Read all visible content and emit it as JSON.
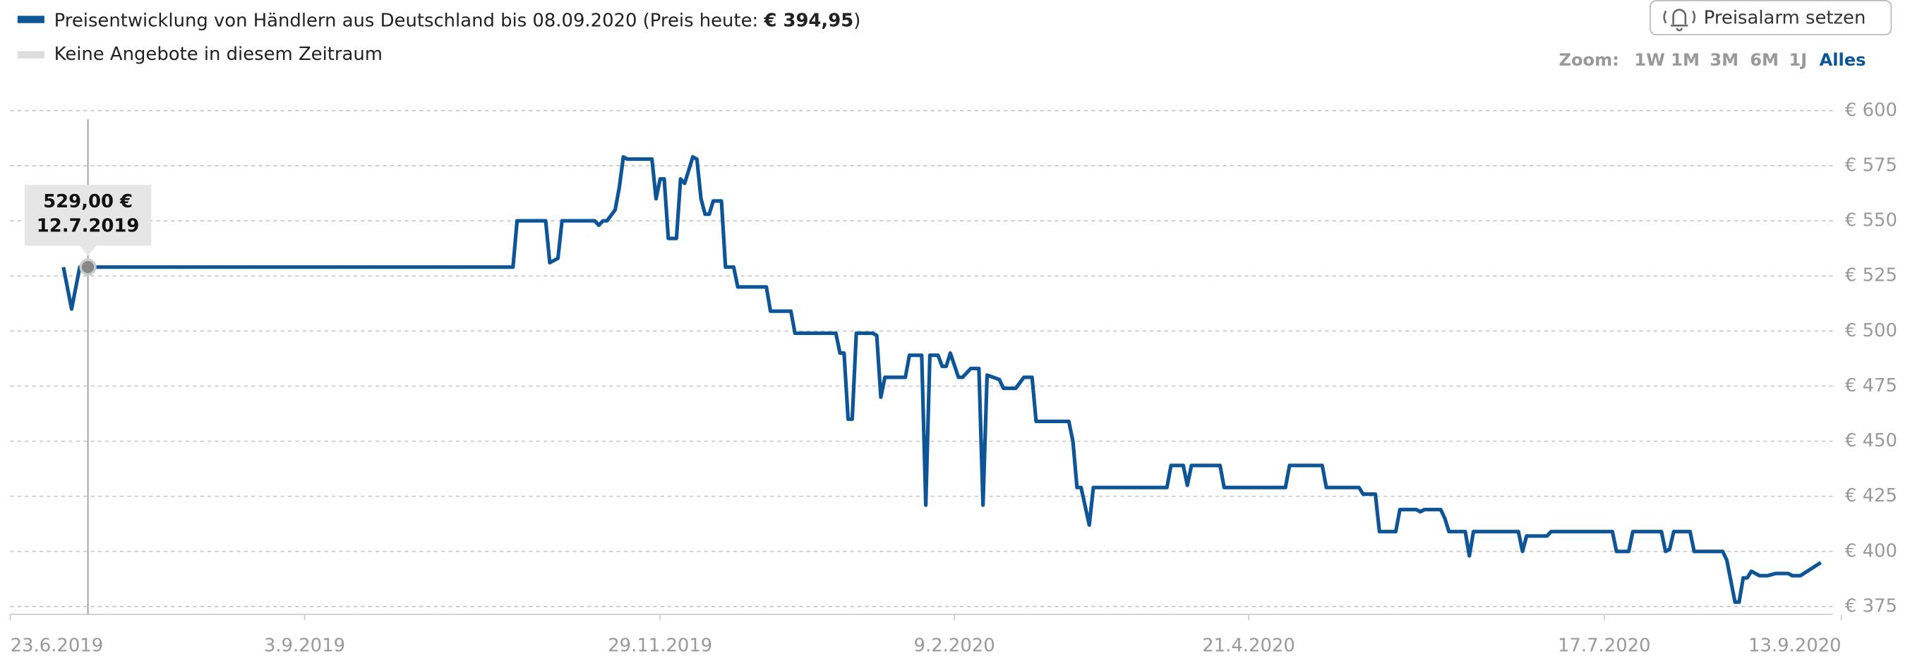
{
  "chart_data": {
    "type": "line",
    "series": [
      {
        "name": "Preisentwicklung von Händlern aus Deutschland bis 08.09.2020 (Preis heute:",
        "color": "#0d5596",
        "values": [
          529,
          510,
          529,
          529,
          529,
          550,
          550,
          531,
          533,
          550,
          550,
          548,
          550,
          550,
          555,
          565,
          579,
          578,
          578,
          560,
          569,
          569,
          542,
          542,
          569,
          567,
          579,
          578,
          560,
          553,
          553,
          559,
          559,
          529,
          529,
          520,
          520,
          509,
          509,
          499,
          499,
          490,
          490,
          460,
          460,
          499,
          499,
          498,
          470,
          479,
          479,
          489,
          489,
          421,
          489,
          489,
          484,
          484,
          490,
          479,
          479,
          483,
          483,
          421,
          480,
          478,
          474,
          474,
          479,
          479,
          459,
          459,
          450,
          429,
          429,
          412,
          429,
          429,
          439,
          439,
          430,
          439,
          439,
          429,
          429,
          439,
          439,
          429,
          429,
          426,
          426,
          409,
          409,
          419,
          419,
          418,
          419,
          419,
          415,
          409,
          409,
          398,
          409,
          409,
          400,
          407,
          407,
          409,
          409,
          400,
          400,
          409,
          409,
          400,
          401,
          409,
          409,
          400,
          400,
          396,
          377,
          377,
          388,
          388,
          391,
          390,
          389,
          389,
          390,
          390,
          389,
          389,
          394.95
        ]
      }
    ],
    "x": [
      "2019-07-06",
      "2019-07-08",
      "2019-07-10",
      "2019-07-12",
      "2019-10-24",
      "2019-10-25",
      "2019-11-01",
      "2019-11-02",
      "2019-11-04",
      "2019-11-05",
      "2019-11-13",
      "2019-11-14",
      "2019-11-15",
      "2019-11-16",
      "2019-11-18",
      "2019-11-19",
      "2019-11-20",
      "2019-11-21",
      "2019-11-27",
      "2019-11-28",
      "2019-11-29",
      "2019-11-30",
      "2019-12-01",
      "2019-12-03",
      "2019-12-04",
      "2019-12-05",
      "2019-12-07",
      "2019-12-08",
      "2019-12-09",
      "2019-12-10",
      "2019-12-11",
      "2019-12-12",
      "2019-12-14",
      "2019-12-15",
      "2019-12-17",
      "2019-12-18",
      "2019-12-25",
      "2019-12-26",
      "2019-12-31",
      "2020-01-01",
      "2020-01-11",
      "2020-01-12",
      "2020-01-13",
      "2020-01-14",
      "2020-01-15",
      "2020-01-16",
      "2020-01-20",
      "2020-01-21",
      "2020-01-22",
      "2020-01-23",
      "2020-01-28",
      "2020-01-29",
      "2020-02-01",
      "2020-02-02",
      "2020-02-03",
      "2020-02-05",
      "2020-02-06",
      "2020-02-07",
      "2020-02-08",
      "2020-02-10",
      "2020-02-11",
      "2020-02-13",
      "2020-02-15",
      "2020-02-16",
      "2020-02-17",
      "2020-02-20",
      "2020-02-21",
      "2020-02-24",
      "2020-02-26",
      "2020-02-28",
      "2020-02-29",
      "2020-03-08",
      "2020-03-09",
      "2020-03-10",
      "2020-03-11",
      "2020-03-13",
      "2020-03-14",
      "2020-04-01",
      "2020-04-02",
      "2020-04-05",
      "2020-04-06",
      "2020-04-07",
      "2020-04-14",
      "2020-04-15",
      "2020-04-30",
      "2020-05-01",
      "2020-05-09",
      "2020-05-10",
      "2020-05-18",
      "2020-05-19",
      "2020-05-22",
      "2020-05-23",
      "2020-05-27",
      "2020-05-28",
      "2020-06-01",
      "2020-06-02",
      "2020-06-03",
      "2020-06-07",
      "2020-06-08",
      "2020-06-09",
      "2020-06-13",
      "2020-06-14",
      "2020-06-15",
      "2020-06-26",
      "2020-06-27",
      "2020-06-28",
      "2020-07-03",
      "2020-07-04",
      "2020-07-19",
      "2020-07-20",
      "2020-07-23",
      "2020-07-24",
      "2020-07-31",
      "2020-08-01",
      "2020-08-02",
      "2020-08-03",
      "2020-08-07",
      "2020-08-08",
      "2020-08-15",
      "2020-08-16",
      "2020-08-18",
      "2020-08-19",
      "2020-08-20",
      "2020-08-21",
      "2020-08-22",
      "2020-08-23",
      "2020-08-24",
      "2020-08-26",
      "2020-08-28",
      "2020-08-31",
      "2020-09-01",
      "2020-09-03",
      "2020-09-08"
    ],
    "price_today": "€ 394,95",
    "legend_close": ")",
    "gap_legend": {
      "name": "Keine Angebote in diesem Zeitraum",
      "color": "#dddddd"
    },
    "xlim": [
      "2019-06-23",
      "2020-09-13"
    ],
    "xticks": [
      {
        "value": "2019-06-23",
        "label": "23.6.2019"
      },
      {
        "value": "2019-09-03",
        "label": "3.9.2019"
      },
      {
        "value": "2019-11-29",
        "label": "29.11.2019"
      },
      {
        "value": "2020-02-09",
        "label": "9.2.2020"
      },
      {
        "value": "2020-04-21",
        "label": "21.4.2020"
      },
      {
        "value": "2020-07-17",
        "label": "17.7.2020"
      },
      {
        "value": "2020-09-13",
        "label": "13.9.2020"
      }
    ],
    "ylim": [
      372,
      604
    ],
    "yticks": [
      {
        "value": 600,
        "label": "€ 600"
      },
      {
        "value": 575,
        "label": "€ 575"
      },
      {
        "value": 550,
        "label": "€ 550"
      },
      {
        "value": 525,
        "label": "€ 525"
      },
      {
        "value": 500,
        "label": "€ 500"
      },
      {
        "value": 475,
        "label": "€ 475"
      },
      {
        "value": 450,
        "label": "€ 450"
      },
      {
        "value": 425,
        "label": "€ 425"
      },
      {
        "value": 400,
        "label": "€ 400"
      },
      {
        "value": 375,
        "label": "€ 375"
      }
    ],
    "grid": true,
    "tooltip": {
      "index": 3,
      "lines": [
        "529,00 €",
        "12.7.2019"
      ]
    },
    "alert_button": "Preisalarm setzen",
    "zoom": {
      "label": "Zoom:",
      "options": [
        "1W",
        "1M",
        "3M",
        "6M",
        "1J",
        "Alles"
      ],
      "active": 5
    }
  }
}
